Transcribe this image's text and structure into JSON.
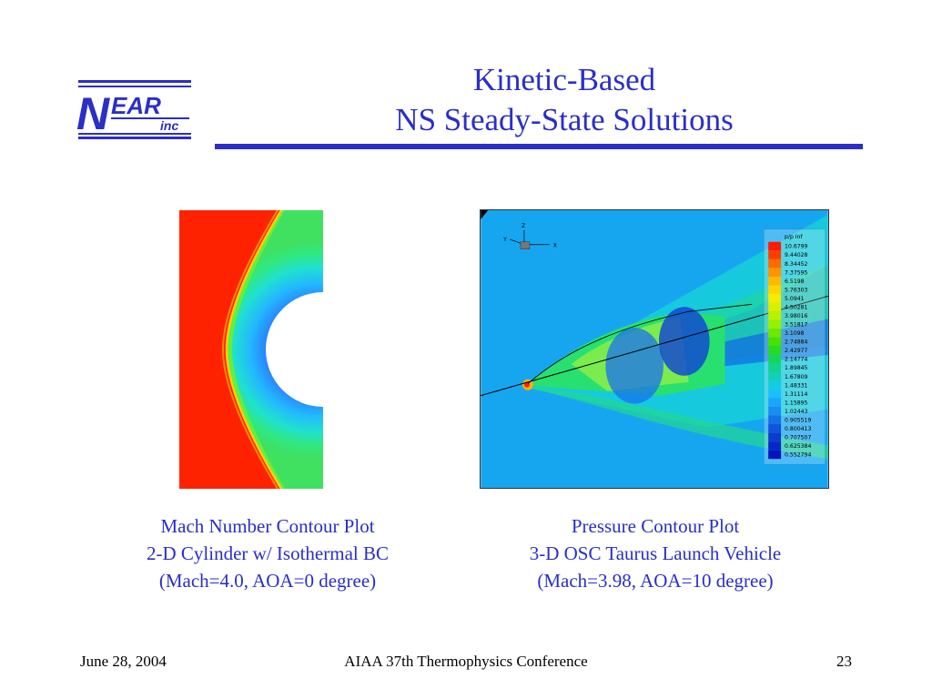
{
  "logo": {
    "letter": "N",
    "word": "EAR",
    "suffix": "inc"
  },
  "title": {
    "line1": "Kinetic-Based",
    "line2": "NS Steady-State Solutions"
  },
  "left_figure": {
    "caption": [
      "Mach Number Contour Plot",
      "2-D Cylinder w/ Isothermal BC",
      "(Mach=4.0, AOA=0 degree)"
    ]
  },
  "right_figure": {
    "caption": [
      "Pressure Contour Plot",
      "3-D OSC Taurus Launch Vehicle",
      "(Mach=3.98, AOA=10 degree)"
    ],
    "axes": {
      "z": "Z",
      "y": "Y",
      "x": "X"
    },
    "legend": {
      "title": "p/p inf",
      "levels": [
        "10.6799",
        "9.44028",
        "8.34452",
        "7.37595",
        "6.5198",
        "5.76303",
        "5.0941",
        "4.50281",
        "3.98016",
        "3.51817",
        "3.1098",
        "2.74884",
        "2.42977",
        "2.14774",
        "1.89845",
        "1.67809",
        "1.48331",
        "1.31114",
        "1.15895",
        "1.02443",
        "0.905519",
        "0.800413",
        "0.707507",
        "0.625384",
        "0.552794"
      ],
      "colors": [
        "#ff1a00",
        "#ff3c00",
        "#ff6a00",
        "#ff9400",
        "#ffb800",
        "#ffd500",
        "#f5ec00",
        "#d9f000",
        "#b9f200",
        "#96f000",
        "#6cea00",
        "#44e400",
        "#25dc22",
        "#16d65a",
        "#12d28c",
        "#12d0b8",
        "#14cce0",
        "#18c0ff",
        "#1aa6ff",
        "#1a8cf2",
        "#1470e6",
        "#0f54da",
        "#0a3cd0",
        "#0626c6",
        "#0214be"
      ]
    }
  },
  "footer": {
    "date": "June 28, 2004",
    "conference": "AIAA 37th Thermophysics Conference",
    "page": "23"
  }
}
